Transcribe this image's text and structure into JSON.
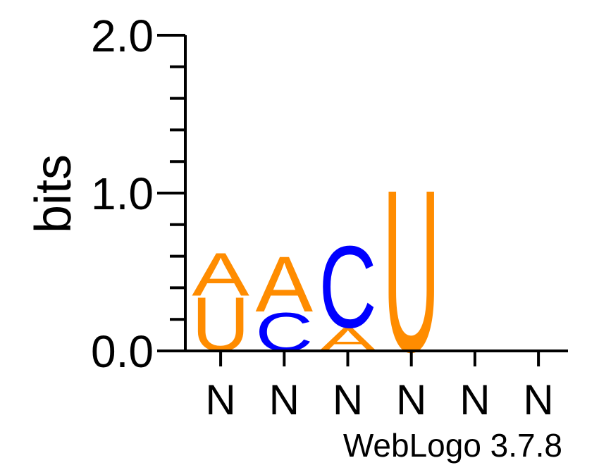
{
  "chart_data": {
    "type": "sequence-logo",
    "ylabel": "bits",
    "ylim": [
      0,
      2.0
    ],
    "y_major_ticks": [
      "0.0",
      "1.0",
      "2.0"
    ],
    "y_tick_step": 0.2,
    "x_labels": [
      "N",
      "N",
      "N",
      "N",
      "N",
      "N"
    ],
    "colors": {
      "A": "#ff8c00",
      "U": "#ff8c00",
      "C": "#0000ff"
    },
    "positions": [
      {
        "letters": [
          {
            "char": "U",
            "bits": 0.35
          },
          {
            "char": "A",
            "bits": 0.28
          }
        ]
      },
      {
        "letters": [
          {
            "char": "C",
            "bits": 0.25
          },
          {
            "char": "A",
            "bits": 0.36
          }
        ]
      },
      {
        "letters": [
          {
            "char": "A",
            "bits": 0.15
          },
          {
            "char": "C",
            "bits": 0.53
          }
        ]
      },
      {
        "letters": [
          {
            "char": "U",
            "bits": 1.05
          }
        ]
      },
      {
        "letters": []
      },
      {
        "letters": []
      }
    ]
  },
  "credit": "WebLogo 3.7.8"
}
